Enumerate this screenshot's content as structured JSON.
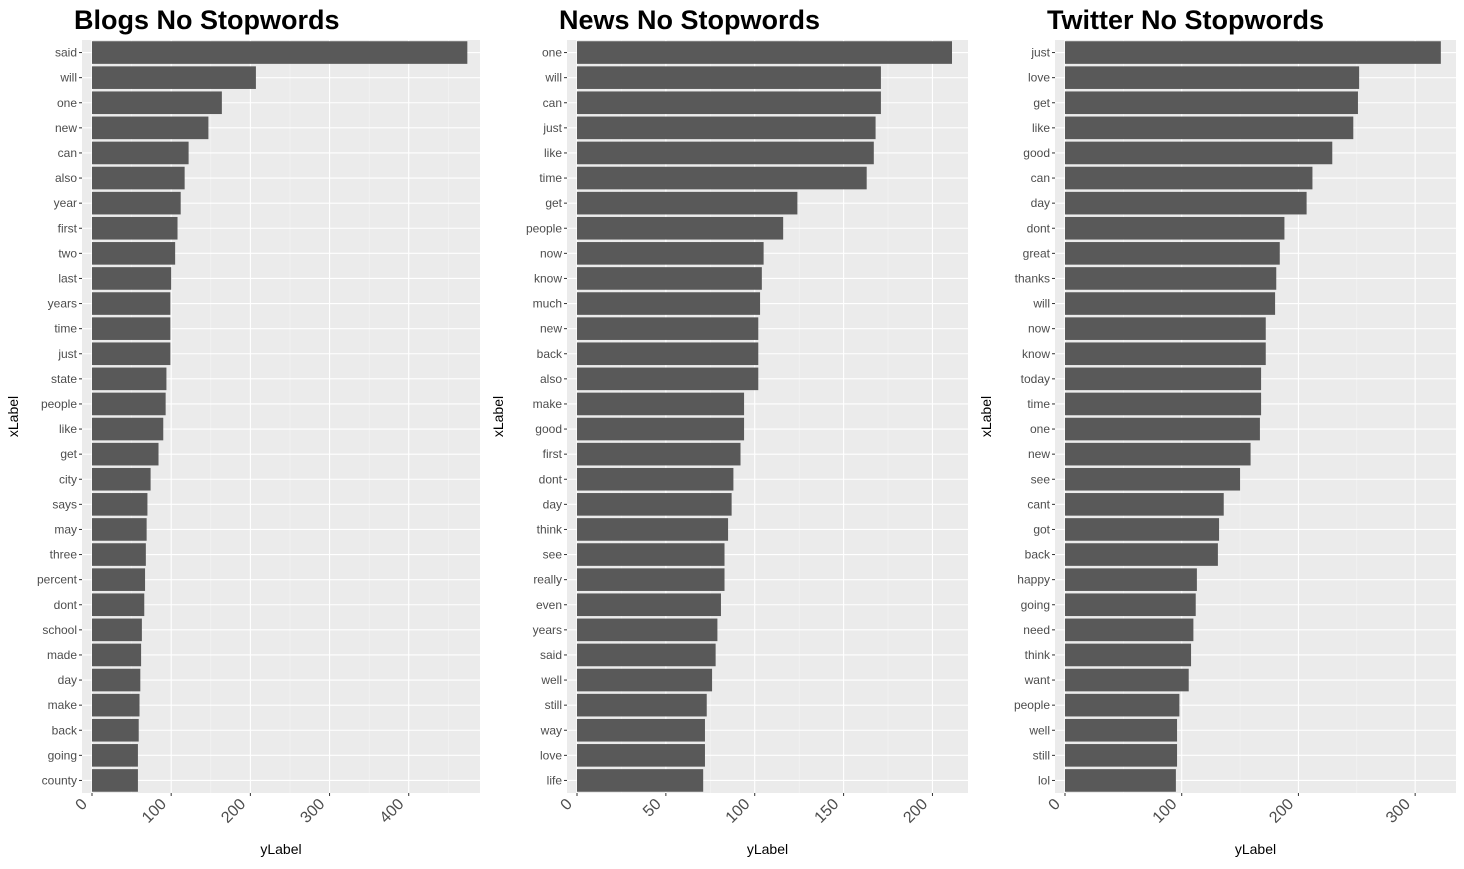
{
  "chart_data": [
    {
      "type": "bar",
      "orientation": "horizontal",
      "title": "Blogs No Stopwords",
      "xlabel": "yLabel",
      "ylabel": "xLabel",
      "xlim": [
        0,
        490
      ],
      "ticks": [
        0,
        100,
        200,
        300,
        400
      ],
      "grid": true,
      "bar_color": "#595959",
      "panel_color": "#ebebeb",
      "categories": [
        "said",
        "will",
        "one",
        "new",
        "can",
        "also",
        "year",
        "first",
        "two",
        "last",
        "years",
        "time",
        "just",
        "state",
        "people",
        "like",
        "get",
        "city",
        "says",
        "may",
        "three",
        "percent",
        "dont",
        "school",
        "made",
        "day",
        "make",
        "back",
        "going",
        "county"
      ],
      "values": [
        474,
        207,
        164,
        147,
        122,
        117,
        112,
        108,
        105,
        100,
        99,
        99,
        99,
        94,
        93,
        90,
        84,
        74,
        70,
        69,
        68,
        67,
        66,
        63,
        62,
        61,
        60,
        59,
        58,
        58
      ]
    },
    {
      "type": "bar",
      "orientation": "horizontal",
      "title": "News No Stopwords",
      "xlabel": "yLabel",
      "ylabel": "xLabel",
      "xlim": [
        0,
        220
      ],
      "ticks": [
        0,
        50,
        100,
        150,
        200
      ],
      "grid": true,
      "bar_color": "#595959",
      "panel_color": "#ebebeb",
      "categories": [
        "one",
        "will",
        "can",
        "just",
        "like",
        "time",
        "get",
        "people",
        "now",
        "know",
        "much",
        "new",
        "back",
        "also",
        "make",
        "good",
        "first",
        "dont",
        "day",
        "think",
        "see",
        "really",
        "even",
        "years",
        "said",
        "well",
        "still",
        "way",
        "love",
        "life"
      ],
      "values": [
        211,
        171,
        171,
        168,
        167,
        163,
        124,
        116,
        105,
        104,
        103,
        102,
        102,
        102,
        94,
        94,
        92,
        88,
        87,
        85,
        83,
        83,
        81,
        79,
        78,
        76,
        73,
        72,
        72,
        71
      ]
    },
    {
      "type": "bar",
      "orientation": "horizontal",
      "title": "Twitter No Stopwords",
      "xlabel": "yLabel",
      "ylabel": "xLabel",
      "xlim": [
        0,
        335
      ],
      "ticks": [
        0,
        100,
        200,
        300
      ],
      "grid": true,
      "bar_color": "#595959",
      "panel_color": "#ebebeb",
      "categories": [
        "just",
        "love",
        "get",
        "like",
        "good",
        "can",
        "day",
        "dont",
        "great",
        "thanks",
        "will",
        "now",
        "know",
        "today",
        "time",
        "one",
        "new",
        "see",
        "cant",
        "got",
        "back",
        "happy",
        "going",
        "need",
        "think",
        "want",
        "people",
        "well",
        "still",
        "lol"
      ],
      "values": [
        322,
        252,
        251,
        247,
        229,
        212,
        207,
        188,
        184,
        181,
        180,
        172,
        172,
        168,
        168,
        167,
        159,
        150,
        136,
        132,
        131,
        113,
        112,
        110,
        108,
        106,
        98,
        96,
        96,
        95
      ]
    }
  ]
}
